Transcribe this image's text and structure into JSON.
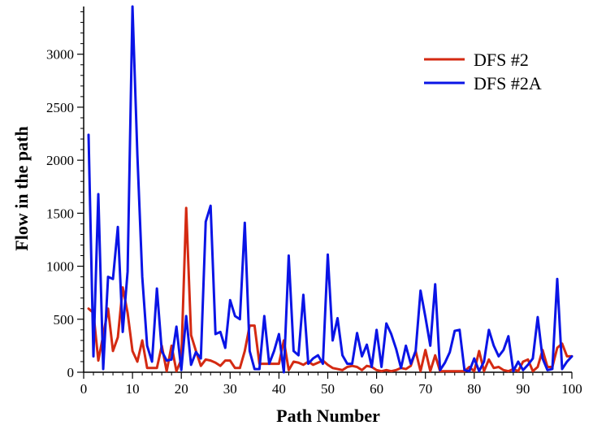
{
  "chart_data": {
    "type": "line",
    "title": "",
    "xlabel": "Path Number",
    "ylabel": "Flow in the path",
    "xlim": [
      0,
      100
    ],
    "ylim": [
      0,
      3450
    ],
    "xticks": [
      0,
      10,
      20,
      30,
      40,
      50,
      60,
      70,
      80,
      90,
      100
    ],
    "yticks": [
      0,
      500,
      1000,
      1500,
      2000,
      2500,
      3000
    ],
    "legend": {
      "position": "top-right"
    },
    "grid": false,
    "series": [
      {
        "name": "DFS #2",
        "color": "#d42a12",
        "x": [
          1,
          2,
          3,
          4,
          5,
          6,
          7,
          8,
          9,
          10,
          11,
          12,
          13,
          14,
          15,
          16,
          17,
          18,
          19,
          20,
          21,
          22,
          23,
          24,
          25,
          26,
          27,
          28,
          29,
          30,
          31,
          32,
          33,
          34,
          35,
          36,
          37,
          38,
          39,
          40,
          41,
          42,
          43,
          44,
          45,
          46,
          47,
          48,
          49,
          50,
          51,
          52,
          53,
          54,
          55,
          56,
          57,
          58,
          59,
          60,
          61,
          62,
          63,
          64,
          65,
          66,
          67,
          68,
          69,
          70,
          71,
          72,
          73,
          74,
          75,
          76,
          77,
          78,
          79,
          80,
          81,
          82,
          83,
          84,
          85,
          86,
          87,
          88,
          89,
          90,
          91,
          92,
          93,
          94,
          95,
          96,
          97,
          98,
          99,
          100
        ],
        "y": [
          600,
          560,
          110,
          350,
          600,
          200,
          330,
          800,
          560,
          200,
          100,
          300,
          40,
          40,
          40,
          250,
          10,
          250,
          10,
          120,
          1550,
          350,
          200,
          60,
          120,
          110,
          90,
          60,
          110,
          110,
          40,
          40,
          200,
          440,
          440,
          80,
          80,
          80,
          80,
          80,
          300,
          20,
          100,
          90,
          70,
          100,
          70,
          90,
          110,
          70,
          40,
          30,
          20,
          50,
          60,
          50,
          20,
          60,
          50,
          20,
          10,
          20,
          10,
          20,
          40,
          30,
          60,
          200,
          10,
          210,
          10,
          160,
          10,
          10,
          10,
          10,
          10,
          10,
          50,
          10,
          200,
          10,
          120,
          40,
          50,
          20,
          10,
          30,
          10,
          100,
          120,
          10,
          50,
          210,
          50,
          50,
          230,
          270,
          150,
          150
        ]
      },
      {
        "name": "DFS #2A",
        "color": "#0a14e6",
        "x": [
          1,
          2,
          3,
          4,
          5,
          6,
          7,
          8,
          9,
          10,
          11,
          12,
          13,
          14,
          15,
          16,
          17,
          18,
          19,
          20,
          21,
          22,
          23,
          24,
          25,
          26,
          27,
          28,
          29,
          30,
          31,
          32,
          33,
          34,
          35,
          36,
          37,
          38,
          39,
          40,
          41,
          42,
          43,
          44,
          45,
          46,
          47,
          48,
          49,
          50,
          51,
          52,
          53,
          54,
          55,
          56,
          57,
          58,
          59,
          60,
          61,
          62,
          63,
          64,
          65,
          66,
          67,
          68,
          69,
          70,
          71,
          72,
          73,
          74,
          75,
          76,
          77,
          78,
          79,
          80,
          81,
          82,
          83,
          84,
          85,
          86,
          87,
          88,
          89,
          90,
          91,
          92,
          93,
          94,
          95,
          96,
          97,
          98,
          99,
          100
        ],
        "y": [
          2240,
          150,
          1680,
          30,
          900,
          880,
          1370,
          380,
          950,
          3450,
          2050,
          900,
          250,
          100,
          790,
          200,
          110,
          120,
          430,
          20,
          530,
          70,
          190,
          130,
          1420,
          1570,
          360,
          380,
          230,
          680,
          530,
          500,
          1410,
          200,
          30,
          30,
          530,
          80,
          200,
          360,
          0,
          1100,
          200,
          160,
          730,
          80,
          130,
          160,
          80,
          1110,
          300,
          510,
          160,
          80,
          80,
          370,
          150,
          260,
          50,
          400,
          50,
          460,
          360,
          220,
          40,
          250,
          80,
          200,
          770,
          520,
          250,
          830,
          20,
          90,
          190,
          390,
          400,
          20,
          10,
          130,
          10,
          100,
          400,
          250,
          150,
          210,
          340,
          10,
          100,
          20,
          70,
          130,
          520,
          130,
          20,
          30,
          880,
          30,
          100,
          150
        ]
      }
    ]
  }
}
